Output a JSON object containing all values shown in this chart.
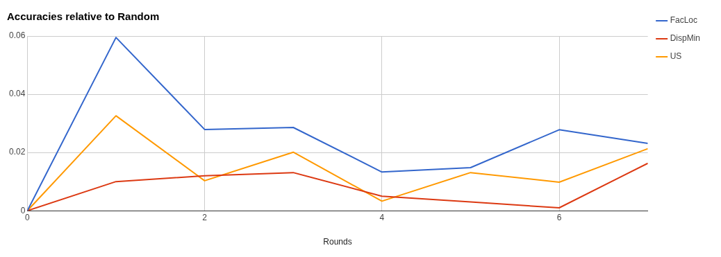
{
  "chart_data": {
    "type": "line",
    "title": "Accuracies relative to Random",
    "xlabel": "Rounds",
    "x": [
      0,
      1,
      2,
      3,
      4,
      5,
      6,
      7
    ],
    "series": [
      {
        "name": "FacLoc",
        "color": "#3366cc",
        "values": [
          0,
          0.0595,
          0.0279,
          0.0286,
          0.0133,
          0.0148,
          0.0278,
          0.0231
        ]
      },
      {
        "name": "DispMin",
        "color": "#dc3912",
        "values": [
          0,
          0.01,
          0.012,
          0.0131,
          0.005,
          0.003,
          0.001,
          0.0163
        ]
      },
      {
        "name": "US",
        "color": "#ff9900",
        "values": [
          0,
          0.0326,
          0.0103,
          0.0201,
          0.0033,
          0.0131,
          0.0098,
          0.0213
        ]
      }
    ],
    "xlim": [
      0,
      7
    ],
    "xticks": [
      0,
      2,
      4,
      6
    ],
    "ylim": [
      0,
      0.06
    ],
    "yticks": [
      0,
      0.02,
      0.04,
      0.06
    ],
    "grid": true,
    "legend": "top right",
    "marker": "none",
    "line_style": "solid"
  }
}
